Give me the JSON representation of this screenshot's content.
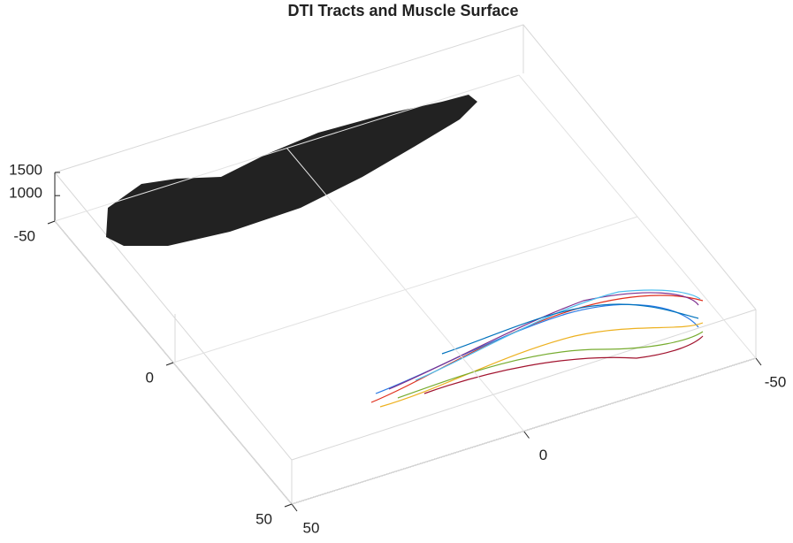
{
  "chart_data": {
    "type": "3d",
    "title": "DTI Tracts and Muscle Surface",
    "xlim": [
      -50,
      50
    ],
    "xticks": [
      -50,
      0,
      50
    ],
    "ylim": [
      -50,
      50
    ],
    "yticks": [
      -50,
      0,
      50
    ],
    "zlim": [
      450,
      1500
    ],
    "zticks": [
      1000,
      1500
    ],
    "grid": true
  }
}
